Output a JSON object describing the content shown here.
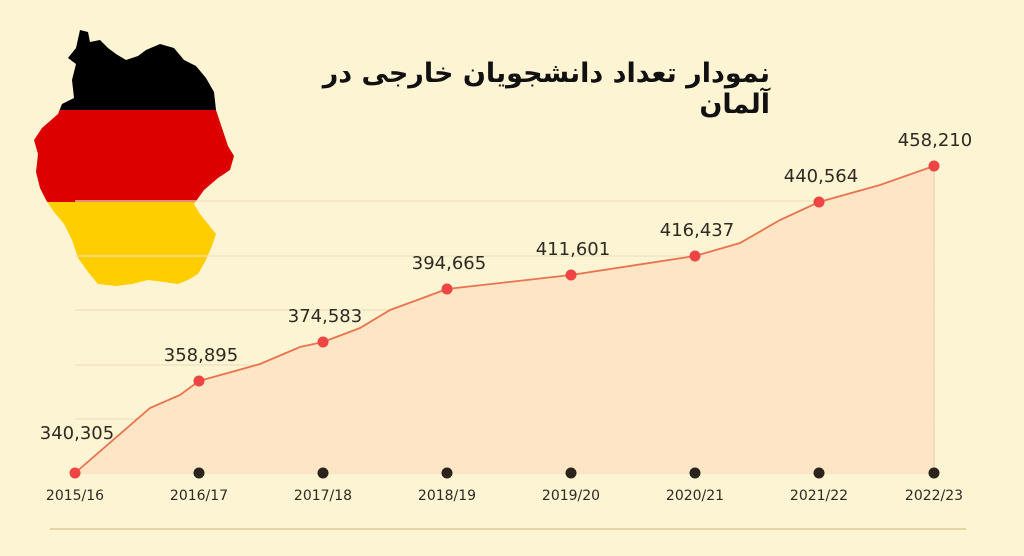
{
  "title": "نمودار تعداد دانشجویان خارجی در آلمان",
  "map": {
    "icon": "germany-flag-map-icon",
    "colors": [
      "#000000",
      "#dd0000",
      "#ffce00"
    ]
  },
  "colors": {
    "background": "#fdf4d3",
    "line": "#e8734f",
    "fill": "#fde3c3",
    "highlight_point": "#ef4444",
    "axis_dot": "#2b231c",
    "grid": "#eedfbf"
  },
  "chart_data": {
    "type": "area",
    "title": "نمودار تعداد دانشجویان خارجی در آلمان",
    "xlabel": "",
    "ylabel": "",
    "categories": [
      "2015/16",
      "2016/17",
      "2017/18",
      "2018/19",
      "2019/20",
      "2020/21",
      "2021/22",
      "2022/23"
    ],
    "values": [
      340305,
      358895,
      374583,
      394665,
      411601,
      416437,
      440564,
      458210
    ],
    "data_labels": [
      "340,305",
      "358,895",
      "374,583",
      "394,665",
      "411,601",
      "416,437",
      "440,564",
      "458,210"
    ],
    "grid": true,
    "legend": null
  }
}
